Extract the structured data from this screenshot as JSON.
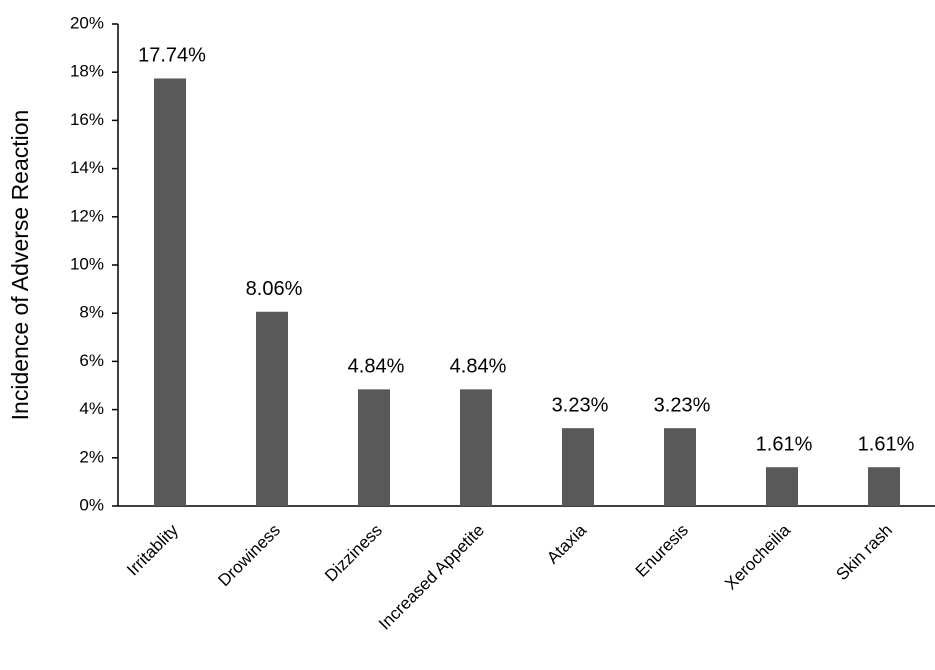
{
  "chart_data": {
    "type": "bar",
    "y_label": "Incidence of Adverse Reaction",
    "categories": [
      "Irritablity",
      "Drowiness",
      "Dizziness",
      "Increased Appetite",
      "Ataxia",
      "Enuresis",
      "Xerocheilia",
      "Skin rash"
    ],
    "values": [
      17.74,
      8.06,
      4.84,
      4.84,
      3.23,
      3.23,
      1.61,
      1.61
    ],
    "value_labels": [
      "17.74%",
      "8.06%",
      "4.84%",
      "4.84%",
      "3.23%",
      "3.23%",
      "1.61%",
      "1.61%"
    ],
    "color": "#595959",
    "ylim": [
      0,
      20
    ],
    "yticks": [
      {
        "value": 0,
        "label": "0%"
      },
      {
        "value": 2,
        "label": "2%"
      },
      {
        "value": 4,
        "label": "4%"
      },
      {
        "value": 6,
        "label": "6%"
      },
      {
        "value": 8,
        "label": "8%"
      },
      {
        "value": 10,
        "label": "10%"
      },
      {
        "value": 12,
        "label": "12%"
      },
      {
        "value": 14,
        "label": "14%"
      },
      {
        "value": 16,
        "label": "16%"
      },
      {
        "value": 18,
        "label": "18%"
      },
      {
        "value": 20,
        "label": "20%"
      }
    ],
    "grid": false
  }
}
